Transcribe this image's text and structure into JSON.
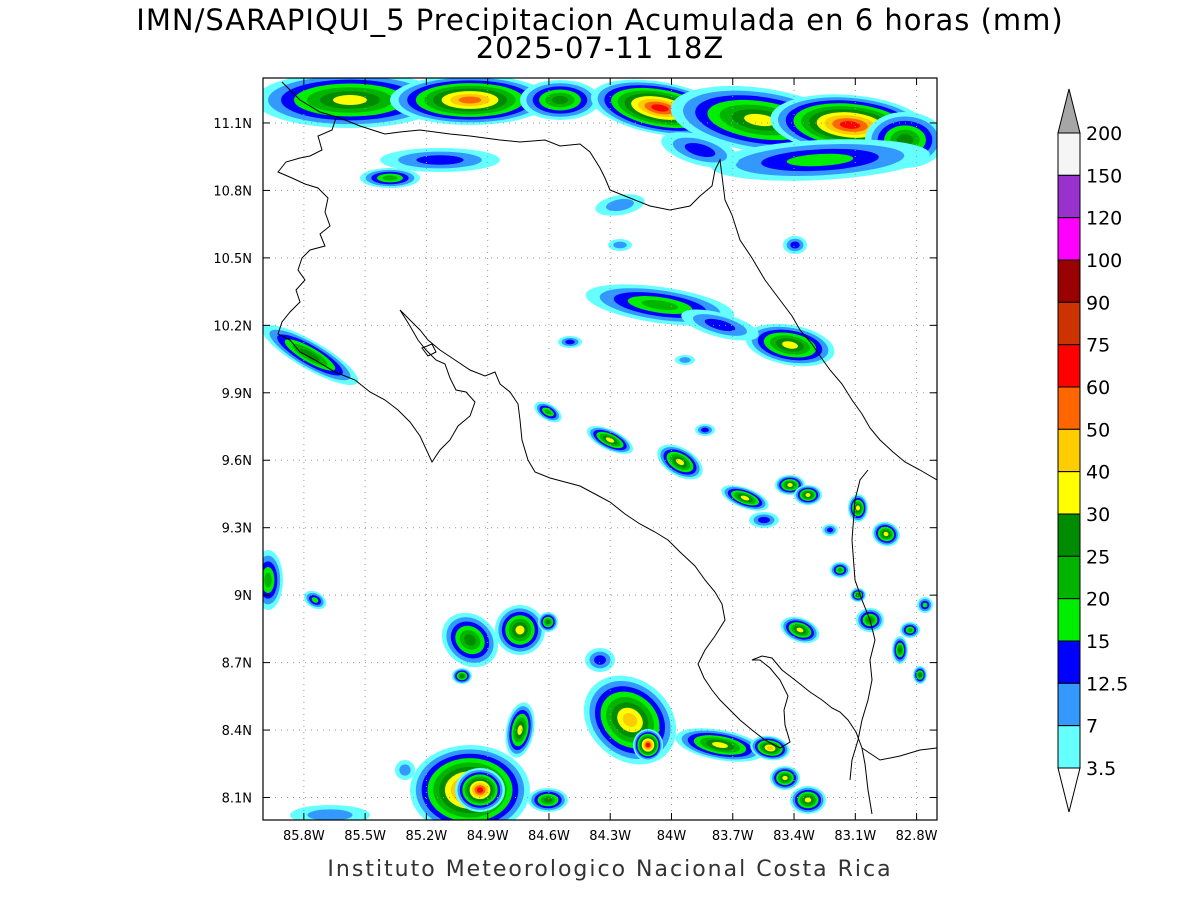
{
  "title": {
    "line1": "IMN/SARAPIQUI_5 Precipitacion Acumulada en 6 horas (mm)",
    "line2": "2025-07-11 18Z"
  },
  "footer": "Instituto Meteorologico Nacional Costa Rica",
  "map": {
    "lon_range": [
      -86.0,
      -82.7
    ],
    "lat_range": [
      8.0,
      11.3
    ],
    "lon_ticks": [
      {
        "v": -85.8,
        "label": "85.8W"
      },
      {
        "v": -85.5,
        "label": "85.5W"
      },
      {
        "v": -85.2,
        "label": "85.2W"
      },
      {
        "v": -84.9,
        "label": "84.9W"
      },
      {
        "v": -84.6,
        "label": "84.6W"
      },
      {
        "v": -84.3,
        "label": "84.3W"
      },
      {
        "v": -84.0,
        "label": "84W"
      },
      {
        "v": -83.7,
        "label": "83.7W"
      },
      {
        "v": -83.4,
        "label": "83.4W"
      },
      {
        "v": -83.1,
        "label": "83.1W"
      },
      {
        "v": -82.8,
        "label": "82.8W"
      }
    ],
    "lat_ticks": [
      {
        "v": 11.1,
        "label": "11.1N"
      },
      {
        "v": 10.8,
        "label": "10.8N"
      },
      {
        "v": 10.5,
        "label": "10.5N"
      },
      {
        "v": 10.2,
        "label": "10.2N"
      },
      {
        "v": 9.9,
        "label": "9.9N"
      },
      {
        "v": 9.6,
        "label": "9.6N"
      },
      {
        "v": 9.3,
        "label": "9.3N"
      },
      {
        "v": 9.0,
        "label": "9N"
      },
      {
        "v": 8.7,
        "label": "8.7N"
      },
      {
        "v": 8.4,
        "label": "8.4N"
      },
      {
        "v": 8.1,
        "label": "8.1N"
      }
    ],
    "grid": "dotted"
  },
  "colorbar": {
    "levels": [
      {
        "label": "200",
        "color": "#f5f5f5"
      },
      {
        "label": "150",
        "color": "#9932cc"
      },
      {
        "label": "120",
        "color": "#ff00ff"
      },
      {
        "label": "100",
        "color": "#990000"
      },
      {
        "label": "90",
        "color": "#cc3300"
      },
      {
        "label": "75",
        "color": "#ff0000"
      },
      {
        "label": "60",
        "color": "#ff6600"
      },
      {
        "label": "50",
        "color": "#ffcc00"
      },
      {
        "label": "40",
        "color": "#ffff00"
      },
      {
        "label": "30",
        "color": "#008c00"
      },
      {
        "label": "25",
        "color": "#00b400"
      },
      {
        "label": "20",
        "color": "#00ee00"
      },
      {
        "label": "15",
        "color": "#0000ff"
      },
      {
        "label": "12.5",
        "color": "#3399ff"
      },
      {
        "label": "7",
        "color": "#66ffff"
      },
      {
        "label": "3.5",
        "color": null
      }
    ],
    "top_arrow_color": "#a6a6a6",
    "bottom_arrow_color": "#ffffff"
  }
}
